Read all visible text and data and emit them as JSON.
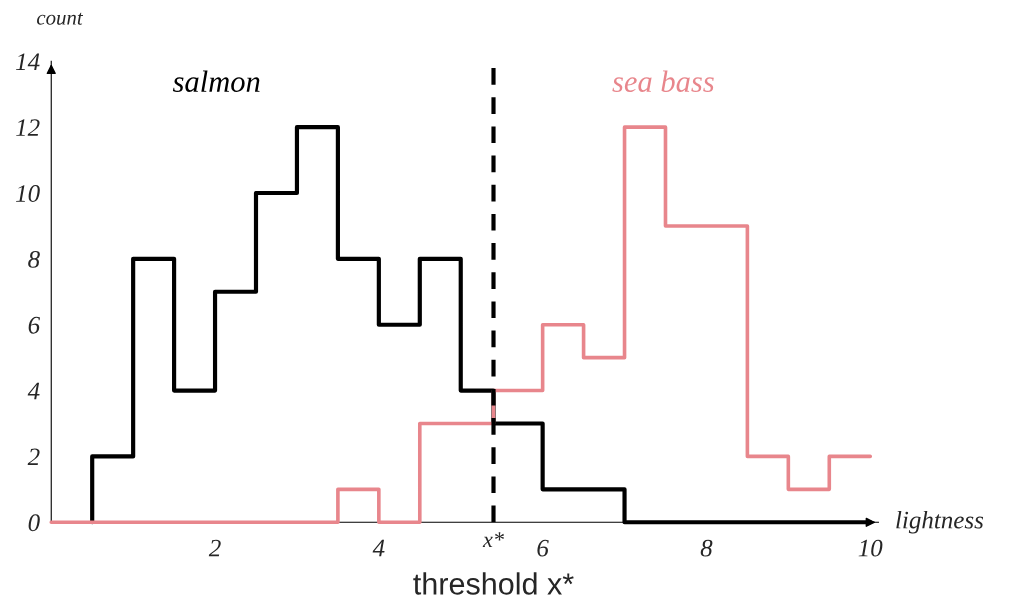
{
  "chart_data": {
    "type": "step",
    "xlabel": "lightness",
    "ylabel": "count",
    "series": [
      {
        "name": "salmon",
        "color": "#000000",
        "x": [
          0.5,
          0.5,
          1,
          1.5,
          2,
          2.5,
          3,
          3.5,
          4,
          4.5,
          5,
          5.4,
          6,
          7,
          10
        ],
        "values": [
          0,
          2,
          8,
          4,
          7,
          10,
          12,
          8,
          6,
          8,
          4,
          3,
          1,
          0,
          0
        ]
      },
      {
        "name": "sea bass",
        "color": "#e8868c",
        "x": [
          0,
          3.5,
          4,
          4.5,
          5.4,
          6,
          6.5,
          7,
          7.5,
          8.5,
          9,
          9.5,
          10
        ],
        "values": [
          0,
          1,
          0,
          3,
          4,
          6,
          5,
          12,
          9,
          2,
          1,
          2,
          2
        ]
      }
    ],
    "xlim": [
      0,
      10.1
    ],
    "ylim": [
      0,
      14
    ],
    "xticks": [
      2,
      4,
      6,
      8,
      10
    ],
    "yticks": [
      0,
      2,
      4,
      6,
      8,
      10,
      12,
      14
    ],
    "ref_lines": [
      {
        "axis": "x",
        "value": 5.4,
        "label": "x*",
        "line_style": "dashed",
        "color": "#000000"
      }
    ],
    "annotations": [
      {
        "text": "threshold x*",
        "x": 5.4,
        "y": 0
      }
    ],
    "grid": false,
    "legend": false
  }
}
